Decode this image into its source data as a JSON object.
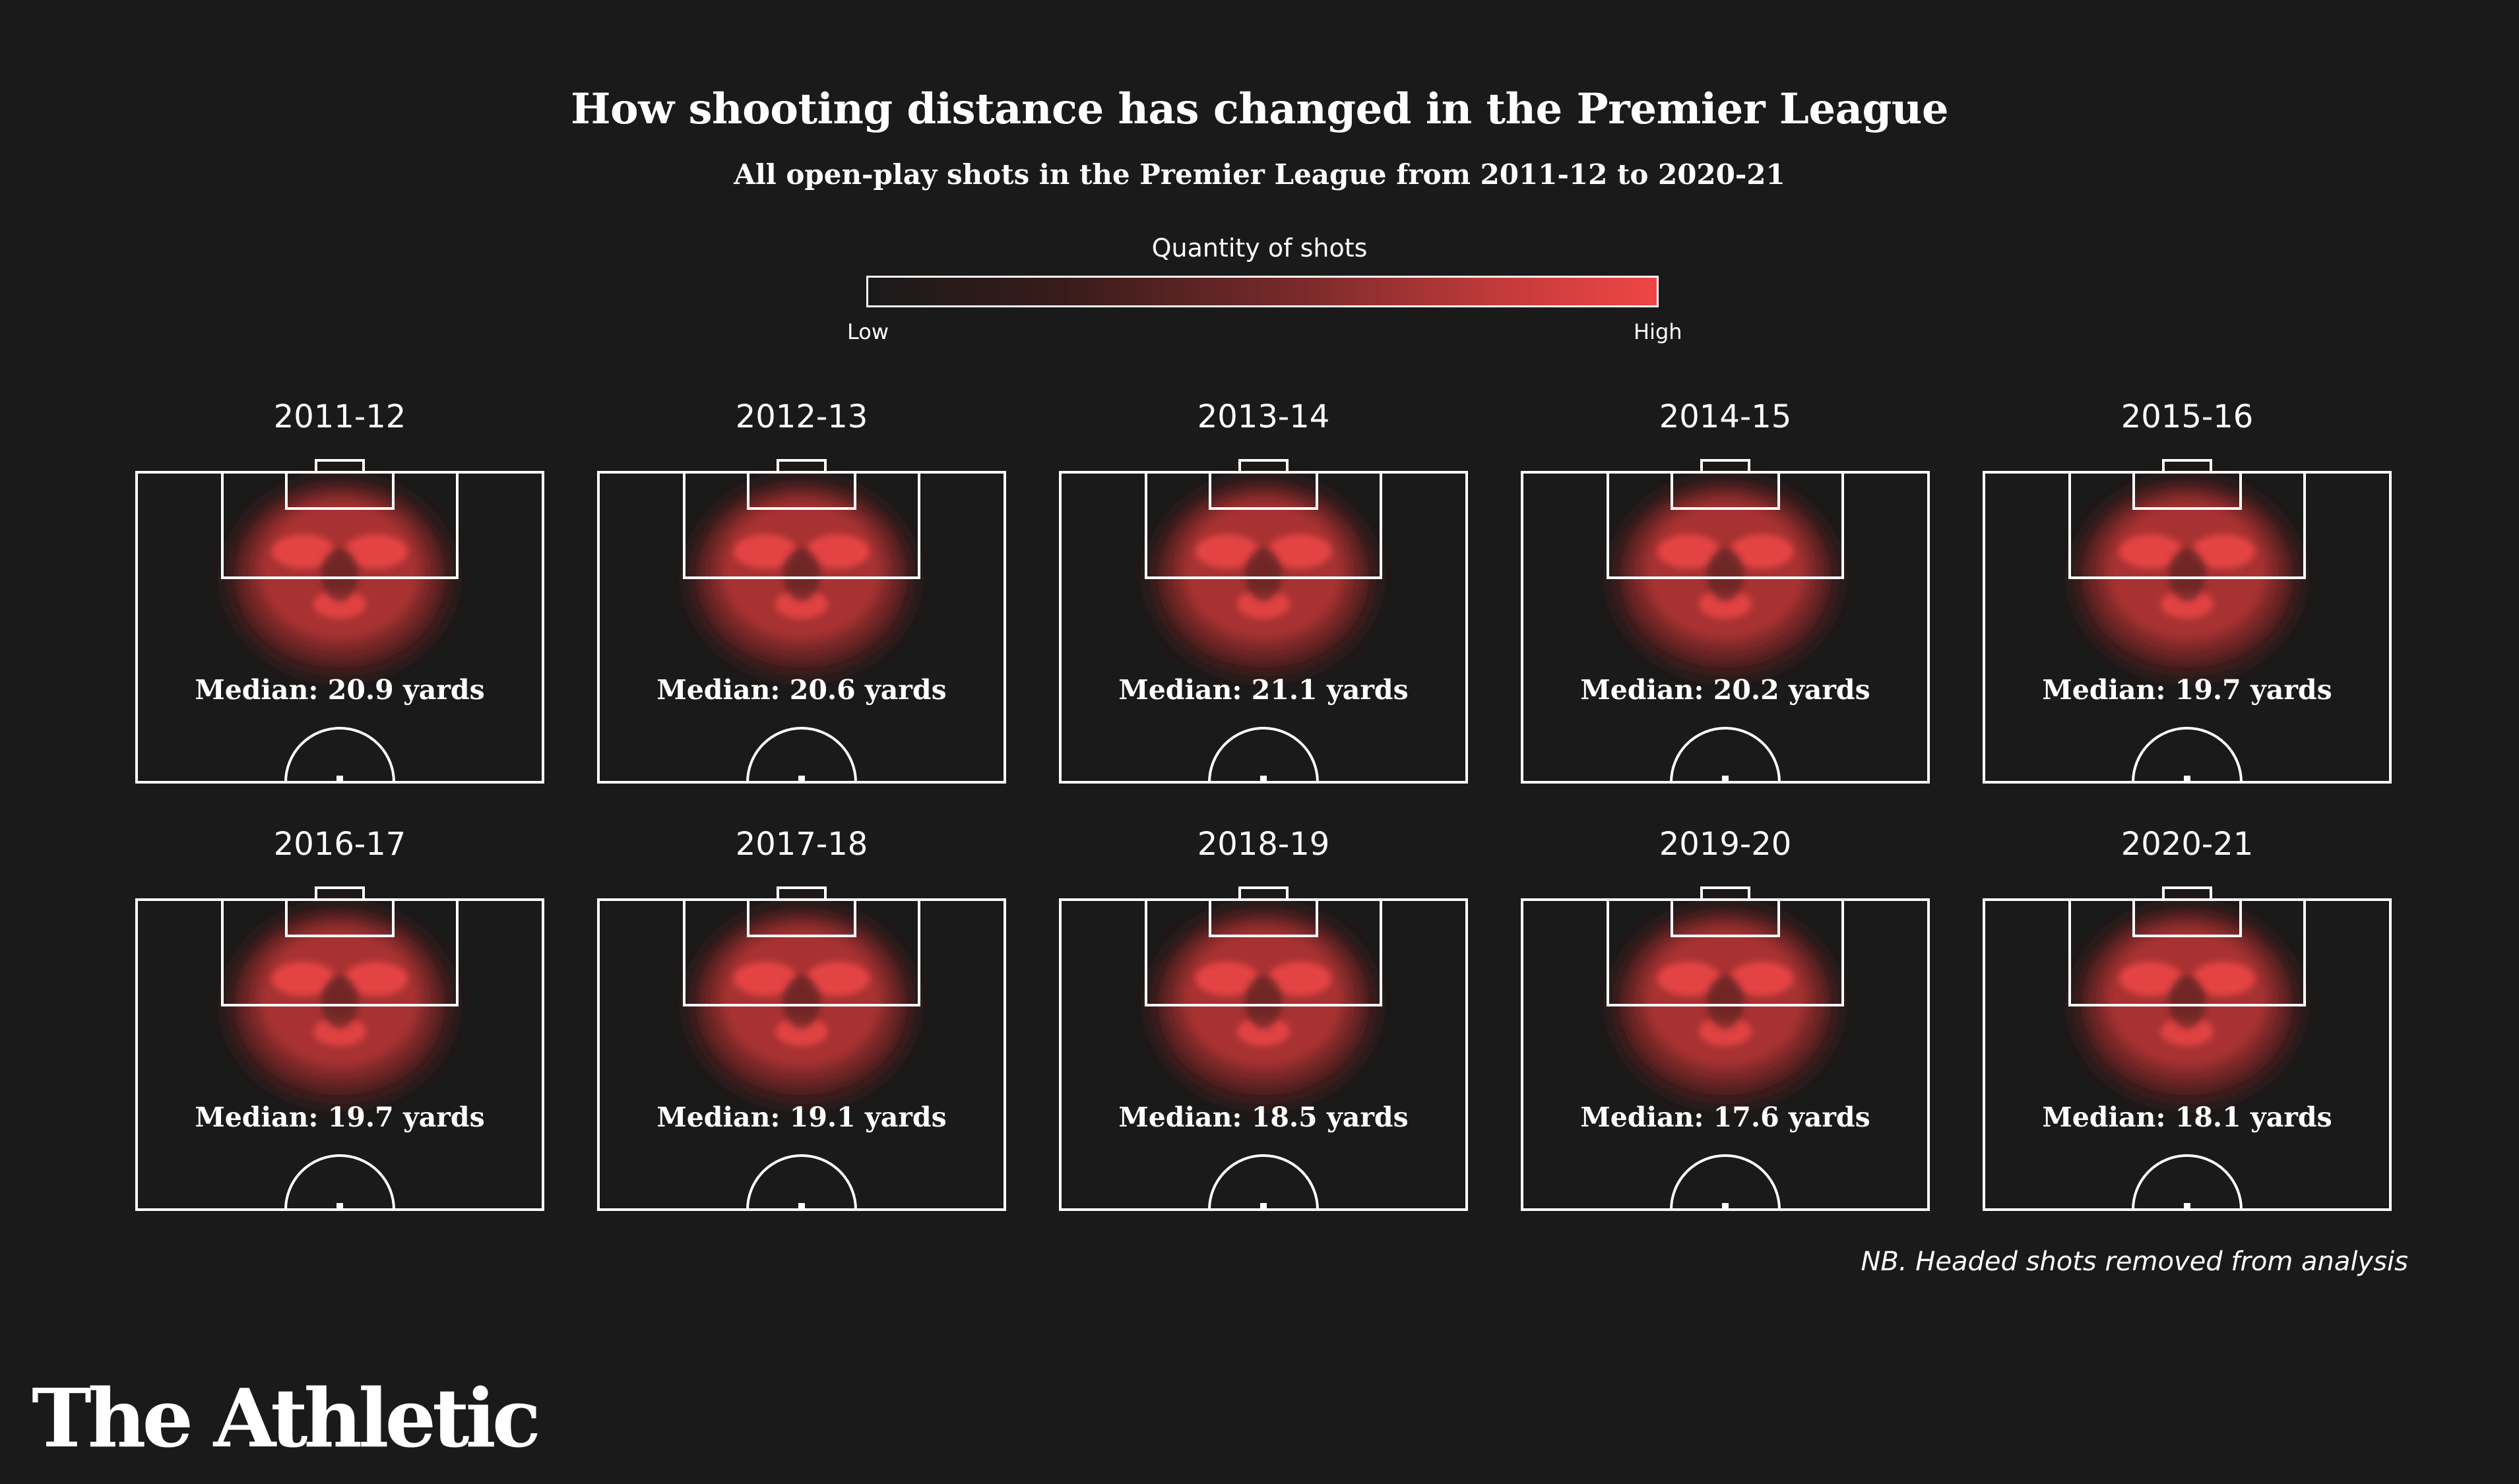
{
  "title": "How shooting distance has changed in the Premier League",
  "subtitle": "All open-play shots in the Premier League from 2011-12 to 2020-21",
  "legend": {
    "title": "Quantity of shots",
    "low_label": "Low",
    "high_label": "High",
    "colors": [
      "#1a1a1a",
      "#3a1b1b",
      "#7a2a2a",
      "#c23a3a",
      "#ef4646"
    ]
  },
  "chart_data": {
    "type": "heatmap",
    "title": "How shooting distance has changed in the Premier League",
    "subtitle": "All open-play shots in the Premier League from 2011-12 to 2020-21",
    "seasons": [
      {
        "season": "2011-12",
        "median_label": "Median: 20.9 yards",
        "median_yards": 20.9
      },
      {
        "season": "2012-13",
        "median_label": "Median: 20.6 yards",
        "median_yards": 20.6
      },
      {
        "season": "2013-14",
        "median_label": "Median: 21.1 yards",
        "median_yards": 21.1
      },
      {
        "season": "2014-15",
        "median_label": "Median: 20.2 yards",
        "median_yards": 20.2
      },
      {
        "season": "2015-16",
        "median_label": "Median: 19.7 yards",
        "median_yards": 19.7
      },
      {
        "season": "2016-17",
        "median_label": "Median: 19.7 yards",
        "median_yards": 19.7
      },
      {
        "season": "2017-18",
        "median_label": "Median: 19.1 yards",
        "median_yards": 19.1
      },
      {
        "season": "2018-19",
        "median_label": "Median: 18.5 yards",
        "median_yards": 18.5
      },
      {
        "season": "2019-20",
        "median_label": "Median: 17.6 yards",
        "median_yards": 17.6
      },
      {
        "season": "2020-21",
        "median_label": "Median: 18.1 yards",
        "median_yards": 18.1
      }
    ]
  },
  "footnote": "NB. Headed shots removed from analysis",
  "brand": "The Athletic"
}
